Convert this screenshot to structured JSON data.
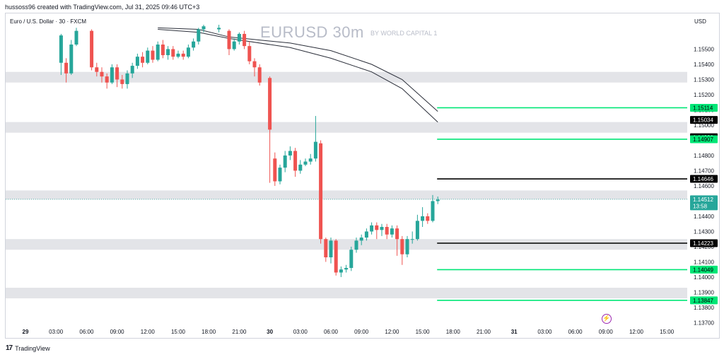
{
  "header": {
    "caption": "hussoss96 created with TradingView.com, Jul 31, 2025 09:46 UTC+3",
    "symbol": "Euro / U.S. Dollar · 30 · FXCM",
    "watermark": "EURUSD 30m",
    "watermark_sub": "BY WORLD CAPITAL 1",
    "currency": "USD"
  },
  "footer": {
    "logo": "17",
    "brand": "TradingView"
  },
  "icons": {
    "alert": "lightning-alert-icon"
  },
  "colors": {
    "up": "#26a69a",
    "down": "#ef5350",
    "zone": "#e3e4e8",
    "green_level": "#00e676",
    "black_level": "#000000",
    "ma": "#2a2e39"
  },
  "chart_data": {
    "type": "candlestick",
    "ylim": [
      1.1363,
      1.1565
    ],
    "y_ticks": [
      "1.15500",
      "1.15400",
      "1.15300",
      "1.15200",
      "1.15100",
      "1.15000",
      "1.14900",
      "1.14800",
      "1.14700",
      "1.14600",
      "1.14500",
      "1.14400",
      "1.14300",
      "1.14200",
      "1.14100",
      "1.14000",
      "1.13900",
      "1.13800",
      "1.13700"
    ],
    "x_ticks": [
      "29",
      "03:00",
      "06:00",
      "09:00",
      "12:00",
      "15:00",
      "18:00",
      "21:00",
      "30",
      "03:00",
      "06:00",
      "09:00",
      "12:00",
      "15:00",
      "18:00",
      "21:00",
      "31",
      "03:00",
      "06:00",
      "09:00",
      "12:00",
      "15:00"
    ],
    "price_labels": [
      {
        "text": "1.15114",
        "style": "green",
        "y": 1.15114
      },
      {
        "text": "1.15034",
        "style": "black",
        "y": 1.15034
      },
      {
        "text": "1.14920",
        "style": "black",
        "y": 1.1492
      },
      {
        "text": "1.14907",
        "style": "green",
        "y": 1.14907
      },
      {
        "text": "1.14646",
        "style": "black",
        "y": 1.14646
      },
      {
        "text": "1.14512",
        "style": "current",
        "y": 1.14512,
        "sub": "13:58"
      },
      {
        "text": "1.14223",
        "style": "black",
        "y": 1.14223
      },
      {
        "text": "1.14049",
        "style": "green",
        "y": 1.14049
      },
      {
        "text": "1.13847",
        "style": "green",
        "y": 1.13847
      }
    ],
    "zones": [
      [
        1.1535,
        1.1528
      ],
      [
        1.1502,
        1.1495
      ],
      [
        1.1457,
        1.1451
      ],
      [
        1.1425,
        1.1418
      ],
      [
        1.1393,
        1.1386
      ]
    ],
    "level_lines": [
      {
        "y": 1.15114,
        "color": "green",
        "from_hour": 40.5
      },
      {
        "y": 1.14907,
        "color": "green",
        "from_hour": 40.5
      },
      {
        "y": 1.14646,
        "color": "black",
        "from_hour": 40.5
      },
      {
        "y": 1.14223,
        "color": "black",
        "from_hour": 40.5
      },
      {
        "y": 1.14049,
        "color": "green",
        "from_hour": 40.5
      },
      {
        "y": 1.13847,
        "color": "green",
        "from_hour": 40.5
      }
    ],
    "ma_series": [
      {
        "points": [
          [
            13,
            1.1563
          ],
          [
            17,
            1.1561
          ],
          [
            20,
            1.1557
          ],
          [
            26,
            1.1551
          ],
          [
            30,
            1.1544
          ],
          [
            34,
            1.1535
          ],
          [
            37,
            1.1524
          ],
          [
            40.5,
            1.1502
          ]
        ]
      },
      {
        "points": [
          [
            13,
            1.1564
          ],
          [
            17,
            1.1563
          ],
          [
            20,
            1.1558
          ],
          [
            26,
            1.1554
          ],
          [
            30,
            1.1549
          ],
          [
            34,
            1.154
          ],
          [
            37,
            1.153
          ],
          [
            40.5,
            1.1509
          ]
        ]
      }
    ],
    "candles_hours_offset": 0,
    "candles": [
      [
        3.5,
        1.1541,
        1.1559,
        1.1533,
        1.156
      ],
      [
        4.0,
        1.1541,
        1.1534,
        1.1528,
        1.1544
      ],
      [
        4.5,
        1.1534,
        1.1553,
        1.1533,
        1.1556
      ],
      [
        5.0,
        1.1553,
        1.1562,
        1.1552,
        1.1564
      ],
      [
        6.5,
        1.1562,
        1.1538,
        1.1536,
        1.1563
      ],
      [
        7.0,
        1.1538,
        1.1535,
        1.1532,
        1.1541
      ],
      [
        7.5,
        1.1535,
        1.1532,
        1.1528,
        1.1538
      ],
      [
        8.0,
        1.1532,
        1.1528,
        1.1524,
        1.1534
      ],
      [
        8.5,
        1.1528,
        1.1538,
        1.1527,
        1.154
      ],
      [
        9.0,
        1.1538,
        1.153,
        1.1525,
        1.154
      ],
      [
        9.5,
        1.153,
        1.1527,
        1.1524,
        1.1533
      ],
      [
        10.0,
        1.1527,
        1.1534,
        1.1524,
        1.1536
      ],
      [
        10.5,
        1.1534,
        1.1539,
        1.1531,
        1.1541
      ],
      [
        11.0,
        1.1539,
        1.1545,
        1.1537,
        1.1547
      ],
      [
        11.5,
        1.1545,
        1.1541,
        1.1538,
        1.1548
      ],
      [
        12.0,
        1.1541,
        1.1549,
        1.154,
        1.1551
      ],
      [
        12.5,
        1.1549,
        1.1543,
        1.1541,
        1.1552
      ],
      [
        13.0,
        1.1543,
        1.1553,
        1.1542,
        1.1555
      ],
      [
        13.5,
        1.1553,
        1.1546,
        1.1544,
        1.1556
      ],
      [
        14.0,
        1.1546,
        1.155,
        1.1543,
        1.1552
      ],
      [
        14.5,
        1.155,
        1.1545,
        1.1543,
        1.1552
      ],
      [
        15.0,
        1.1545,
        1.1547,
        1.1544,
        1.1549
      ],
      [
        15.5,
        1.1547,
        1.1545,
        1.1543,
        1.1549
      ],
      [
        16.0,
        1.1545,
        1.1551,
        1.1544,
        1.1553
      ],
      [
        16.5,
        1.1551,
        1.1555,
        1.1549,
        1.1557
      ],
      [
        17.0,
        1.1555,
        1.1563,
        1.1553,
        1.1564
      ],
      [
        17.5,
        1.1563,
        1.1565,
        1.1561,
        1.1566
      ],
      [
        19.0,
        1.1563,
        1.1564,
        1.1561,
        1.1566
      ],
      [
        20.0,
        1.1562,
        1.155,
        1.1546,
        1.1563
      ],
      [
        20.5,
        1.155,
        1.1555,
        1.1549,
        1.1557
      ],
      [
        21.0,
        1.1555,
        1.156,
        1.1553,
        1.1561
      ],
      [
        21.5,
        1.156,
        1.1552,
        1.155,
        1.1562
      ],
      [
        22.0,
        1.1552,
        1.1542,
        1.154,
        1.1555
      ],
      [
        22.5,
        1.1542,
        1.1538,
        1.1532,
        1.1544
      ],
      [
        23.0,
        1.1538,
        1.1528,
        1.1526,
        1.154
      ],
      [
        24.0,
        1.1531,
        1.1497,
        1.1462,
        1.1532
      ],
      [
        24.5,
        1.1478,
        1.1463,
        1.146,
        1.1482
      ],
      [
        25.0,
        1.1463,
        1.1472,
        1.1461,
        1.1474
      ],
      [
        25.5,
        1.1472,
        1.148,
        1.1469,
        1.1483
      ],
      [
        26.0,
        1.148,
        1.1483,
        1.1477,
        1.1486
      ],
      [
        26.5,
        1.1483,
        1.147,
        1.1466,
        1.1485
      ],
      [
        27.0,
        1.147,
        1.1474,
        1.1468,
        1.1477
      ],
      [
        27.5,
        1.1474,
        1.1476,
        1.1473,
        1.1478
      ],
      [
        28.0,
        1.1476,
        1.1478,
        1.1474,
        1.1481
      ],
      [
        28.5,
        1.1478,
        1.1489,
        1.1476,
        1.1506
      ],
      [
        29.0,
        1.1488,
        1.1425,
        1.1422,
        1.149
      ],
      [
        29.5,
        1.1425,
        1.1413,
        1.141,
        1.1426
      ],
      [
        30.0,
        1.1413,
        1.1424,
        1.1409,
        1.1426
      ],
      [
        30.5,
        1.1424,
        1.1403,
        1.1401,
        1.1425
      ],
      [
        31.0,
        1.1403,
        1.1405,
        1.14,
        1.1407
      ],
      [
        31.5,
        1.1405,
        1.1406,
        1.1403,
        1.1408
      ],
      [
        32.0,
        1.1406,
        1.1418,
        1.1404,
        1.142
      ],
      [
        32.5,
        1.1418,
        1.1424,
        1.1416,
        1.1426
      ],
      [
        33.0,
        1.1424,
        1.1426,
        1.1421,
        1.1428
      ],
      [
        33.5,
        1.1426,
        1.143,
        1.1424,
        1.1432
      ],
      [
        34.0,
        1.143,
        1.1434,
        1.1428,
        1.1436
      ],
      [
        34.5,
        1.1434,
        1.1431,
        1.1425,
        1.1436
      ],
      [
        35.0,
        1.1431,
        1.1433,
        1.1427,
        1.1435
      ],
      [
        35.5,
        1.1433,
        1.1428,
        1.1425,
        1.1435
      ],
      [
        36.0,
        1.1428,
        1.1432,
        1.1426,
        1.1434
      ],
      [
        36.5,
        1.1432,
        1.1425,
        1.1414,
        1.1434
      ],
      [
        37.0,
        1.1425,
        1.1415,
        1.1408,
        1.1427
      ],
      [
        37.5,
        1.1415,
        1.1425,
        1.1413,
        1.1427
      ],
      [
        38.0,
        1.1425,
        1.1425,
        1.1422,
        1.143
      ],
      [
        38.5,
        1.1425,
        1.1437,
        1.1424,
        1.1441
      ],
      [
        39.0,
        1.1437,
        1.144,
        1.1433,
        1.1446
      ],
      [
        39.5,
        1.144,
        1.1437,
        1.1435,
        1.1442
      ],
      [
        40.0,
        1.1437,
        1.145,
        1.1436,
        1.1454
      ],
      [
        40.5,
        1.145,
        1.1451,
        1.1448,
        1.1453
      ]
    ]
  }
}
